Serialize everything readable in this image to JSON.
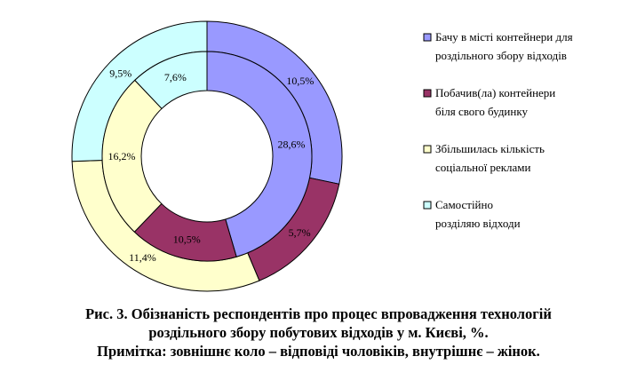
{
  "chart_data": {
    "type": "donut",
    "categories": [
      "Бачу в місті контейнери для роздільного збору відходів",
      "Побачив(ла) контейнери біля свого будинку",
      "Збільшилась кількість соціальної реклами",
      "Самостійно розділяю відходи"
    ],
    "series": [
      {
        "name": "зовнішнє коло – відповіді чоловіків",
        "values": [
          10.5,
          5.7,
          11.4,
          9.5
        ],
        "labels": [
          "10,5%",
          "5,7%",
          "11,4%",
          "9,5%"
        ]
      },
      {
        "name": "внутрішнє – жінок",
        "values": [
          28.6,
          10.5,
          16.2,
          7.6
        ],
        "labels": [
          "28,6%",
          "10,5%",
          "16,2%",
          "7,6%"
        ]
      }
    ],
    "colors": [
      "#9999ff",
      "#993366",
      "#ffffcc",
      "#ccffff"
    ],
    "legend": {
      "placement": "right",
      "entries": [
        {
          "lines": [
            "Бачу в місті контейнери для",
            "роздільного збору відходів"
          ]
        },
        {
          "lines": [
            "Побачив(ла) контейнери",
            "біля свого будинку"
          ]
        },
        {
          "lines": [
            "Збільшилась кількість",
            "соціальної реклами"
          ]
        },
        {
          "lines": [
            "Самостійно",
            "розділяю відходи"
          ]
        }
      ]
    }
  },
  "caption": {
    "line1": "Рис. 3. Обізнаність респондентів про процес впровадження технологій",
    "line2": "роздільного збору побутових відходів у м. Києві, %.",
    "line3": "Примітка: зовнішнє коло – відповіді чоловіків, внутрішнє – жінок."
  }
}
